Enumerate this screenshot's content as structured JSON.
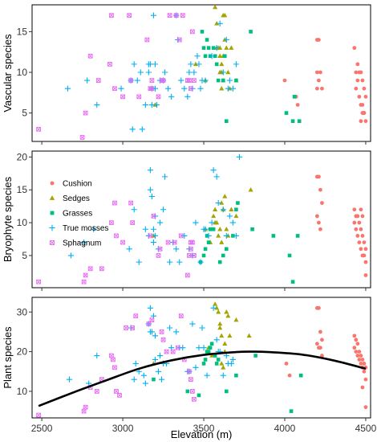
{
  "colors": {
    "Cushion": "#F8766D",
    "Sedges": "#A3A500",
    "Grasses": "#00BF7D",
    "True mosses": "#00B0F6",
    "Sphagnum": "#E76BF3",
    "curve": "#000000"
  },
  "x_axis": {
    "label": "Elevation (m)",
    "range": [
      2440,
      4530
    ],
    "ticks": [
      2500,
      3000,
      3500,
      4000,
      4500
    ]
  },
  "legend": {
    "placement": "top-left inside middle panel",
    "entries": [
      "Cushion",
      "Sedges",
      "Grasses",
      "True mosses",
      "Sphagnum"
    ]
  },
  "chart_data": [
    {
      "type": "scatter",
      "ylabel": "Vascular species",
      "ylim": [
        1.5,
        18.3
      ],
      "yticks": [
        5,
        10,
        15
      ],
      "series": [
        {
          "name": "Cushion",
          "x": [
            4000,
            4070,
            4080,
            4200,
            4210,
            4200,
            4220,
            4230,
            4200,
            4210,
            4430,
            4440,
            4450,
            4440,
            4460,
            4470,
            4480,
            4490,
            4500,
            4450,
            4460,
            4470,
            4480,
            4490,
            4500,
            4470,
            4480,
            4490
          ],
          "y": [
            9,
            7,
            6,
            14,
            14,
            10,
            10,
            8,
            8,
            9,
            13,
            10,
            9,
            8,
            7,
            6,
            5,
            5,
            4,
            11,
            10,
            10,
            9,
            8,
            7,
            4,
            6,
            5
          ]
        },
        {
          "name": "Sedges",
          "x": [
            3200,
            3450,
            3510,
            3570,
            3580,
            3580,
            3590,
            3600,
            3600,
            3610,
            3610,
            3620,
            3620,
            3630,
            3630,
            3640,
            3650,
            3660,
            3670,
            3700,
            3600,
            3610,
            3620
          ],
          "y": [
            6,
            11,
            9,
            18,
            16,
            13,
            13,
            13,
            12,
            11,
            8,
            12,
            9,
            17,
            14,
            13,
            10,
            8,
            13,
            9,
            10,
            10,
            17
          ]
        },
        {
          "name": "Grasses",
          "x": [
            3490,
            3500,
            3510,
            3520,
            3530,
            3540,
            3560,
            3570,
            3580,
            3590,
            3620,
            3630,
            3640,
            3700,
            3790,
            4010,
            4050,
            4060,
            4090
          ],
          "y": [
            15,
            13,
            12,
            14,
            13,
            12,
            13,
            12,
            11,
            9,
            9,
            12,
            4,
            9,
            15,
            5,
            4,
            7,
            4
          ]
        },
        {
          "name": "True mosses",
          "x": [
            2660,
            2780,
            2840,
            2990,
            3050,
            3060,
            3070,
            3090,
            3110,
            3120,
            3140,
            3160,
            3160,
            3170,
            3180,
            3180,
            3190,
            3200,
            3200,
            3210,
            3230,
            3250,
            3260,
            3280,
            3300,
            3330,
            3340,
            3360,
            3380,
            3400,
            3410,
            3420,
            3430,
            3440,
            3460,
            3470,
            3480,
            3490,
            3510,
            3550,
            3580,
            3600,
            3620,
            3640,
            3650,
            3660,
            3680,
            3700
          ],
          "y": [
            8,
            9,
            6,
            8,
            9,
            3,
            11,
            9,
            10,
            3,
            6,
            10,
            11,
            11,
            6,
            8,
            17,
            8,
            11,
            6,
            9,
            9,
            10,
            8,
            7,
            17,
            14,
            9,
            8,
            7,
            10,
            11,
            8,
            10,
            12,
            11,
            8,
            9,
            9,
            12,
            13,
            16,
            10,
            14,
            8,
            9,
            8,
            11
          ]
        },
        {
          "name": "Sphagnum",
          "x": [
            2480,
            2750,
            2770,
            2800,
            2850,
            2920,
            2930,
            2950,
            3000,
            3040,
            3050,
            3100,
            3150,
            3170,
            3180,
            3180,
            3220,
            3240,
            3250,
            3290,
            3330,
            3350,
            3370,
            3400,
            3410,
            3420,
            3430,
            3440
          ],
          "y": [
            3,
            2,
            5,
            12,
            9,
            11,
            17,
            8,
            7,
            17,
            9,
            7,
            14,
            8,
            8,
            9,
            7,
            9,
            9,
            17,
            17,
            14,
            17,
            9,
            9,
            8,
            15,
            9
          ]
        }
      ]
    },
    {
      "type": "scatter",
      "ylabel": "Bryophyte species",
      "ylim": [
        0.1,
        20.9
      ],
      "yticks": [
        5,
        10,
        15,
        20
      ],
      "series": [
        {
          "name": "Cushion",
          "x": [
            4200,
            4210,
            4220,
            4230,
            4200,
            4210,
            4220,
            4430,
            4440,
            4450,
            4460,
            4470,
            4480,
            4490,
            4500,
            4430,
            4440,
            4450,
            4460,
            4470,
            4480,
            4490,
            4500,
            4470,
            4480,
            4500
          ],
          "y": [
            17,
            17,
            15,
            13,
            11,
            10,
            9,
            12,
            11,
            11,
            10,
            9,
            8,
            7,
            6,
            10,
            9,
            8,
            7,
            6,
            5,
            5,
            4,
            12,
            11,
            2
          ]
        },
        {
          "name": "Sedges",
          "x": [
            3190,
            3510,
            3540,
            3560,
            3570,
            3570,
            3580,
            3590,
            3600,
            3610,
            3610,
            3620,
            3630,
            3640,
            3650,
            3670,
            3700,
            3790
          ],
          "y": [
            8,
            9,
            7,
            11,
            12,
            10,
            10,
            8,
            9,
            7,
            13,
            12,
            14,
            9,
            8,
            12,
            11,
            15
          ]
        },
        {
          "name": "Grasses",
          "x": [
            3480,
            3500,
            3510,
            3520,
            3530,
            3540,
            3560,
            3600,
            3620,
            3640,
            3680,
            3700,
            3710,
            3800,
            3930,
            4030,
            4050,
            4080
          ],
          "y": [
            4,
            5,
            6,
            8,
            7,
            9,
            9,
            4,
            5,
            6,
            8,
            12,
            13,
            9,
            8,
            5,
            1,
            8
          ]
        },
        {
          "name": "True mosses",
          "x": [
            2680,
            2760,
            2820,
            3040,
            3070,
            3100,
            3140,
            3160,
            3170,
            3170,
            3180,
            3190,
            3190,
            3200,
            3200,
            3220,
            3230,
            3250,
            3260,
            3290,
            3310,
            3330,
            3350,
            3380,
            3410,
            3430,
            3450,
            3480,
            3500,
            3510,
            3530,
            3550,
            3560,
            3580,
            3590,
            3620,
            3640,
            3660,
            3680,
            3700,
            3720
          ],
          "y": [
            5,
            7,
            9,
            6,
            12,
            4,
            9,
            8,
            15,
            18,
            14,
            9,
            7,
            11,
            8,
            6,
            10,
            12,
            17,
            4,
            7,
            6,
            4,
            8,
            6,
            5,
            10,
            4,
            9,
            9,
            8,
            10,
            18,
            17,
            13,
            12,
            8,
            11,
            10,
            8,
            20
          ]
        },
        {
          "name": "Sphagnum",
          "x": [
            2480,
            2760,
            2770,
            2800,
            2870,
            2930,
            2950,
            2960,
            3000,
            3050,
            3060,
            3170,
            3190,
            3220,
            3230,
            3280,
            3320,
            3360,
            3400,
            3410,
            3420,
            3420,
            3430,
            3440
          ],
          "y": [
            1,
            1,
            2,
            3,
            3,
            10,
            13,
            8,
            7,
            13,
            10,
            8,
            11,
            5,
            6,
            7,
            7,
            8,
            2,
            5,
            6,
            7,
            7,
            5
          ]
        }
      ]
    },
    {
      "type": "scatter",
      "ylabel": "Plant species",
      "ylim": [
        3.3,
        33.7
      ],
      "yticks": [
        10,
        20,
        30
      ],
      "series": [
        {
          "name": "Cushion",
          "x": [
            4010,
            4030,
            4200,
            4210,
            4220,
            4230,
            4200,
            4210,
            4220,
            4230,
            4430,
            4440,
            4450,
            4460,
            4470,
            4480,
            4490,
            4500,
            4430,
            4440,
            4450,
            4460,
            4470,
            4480,
            4490,
            4500,
            4480,
            4500
          ],
          "y": [
            17,
            14,
            31,
            31,
            25,
            23,
            22,
            21,
            21,
            19,
            24,
            23,
            22,
            20,
            19,
            18,
            17,
            16,
            21,
            20,
            19,
            18,
            17,
            16,
            15,
            13,
            11,
            6
          ]
        },
        {
          "name": "Sedges",
          "x": [
            3190,
            3530,
            3550,
            3570,
            3580,
            3590,
            3600,
            3600,
            3610,
            3610,
            3620,
            3630,
            3630,
            3640,
            3650,
            3660,
            3700,
            3780
          ],
          "y": [
            17,
            21,
            19,
            32,
            31,
            30,
            27,
            26,
            24,
            17,
            16,
            20,
            22,
            30,
            29,
            24,
            28,
            24
          ]
        },
        {
          "name": "Grasses",
          "x": [
            3190,
            3400,
            3470,
            3500,
            3510,
            3520,
            3530,
            3540,
            3550,
            3570,
            3580,
            3590,
            3640,
            3700,
            3820,
            4040,
            4100
          ],
          "y": [
            13,
            10,
            9,
            17,
            18,
            20,
            20,
            21,
            22,
            19,
            17,
            18,
            10,
            14,
            19,
            5,
            14
          ]
        },
        {
          "name": "True mosses",
          "x": [
            2670,
            2790,
            2840,
            3050,
            3070,
            3080,
            3100,
            3130,
            3140,
            3160,
            3170,
            3170,
            3180,
            3190,
            3200,
            3200,
            3220,
            3230,
            3240,
            3250,
            3270,
            3290,
            3300,
            3330,
            3350,
            3370,
            3400,
            3410,
            3430,
            3450,
            3470,
            3490,
            3500,
            3520,
            3560,
            3580,
            3590,
            3600,
            3620,
            3640,
            3650,
            3670,
            3680
          ],
          "y": [
            13,
            12,
            19,
            26,
            13,
            17,
            15,
            14,
            12,
            27,
            31,
            25,
            25,
            29,
            24,
            18,
            15,
            19,
            13,
            17,
            17,
            26,
            21,
            25,
            21,
            21,
            15,
            15,
            27,
            16,
            21,
            26,
            21,
            14,
            31,
            23,
            20,
            20,
            14,
            19,
            17,
            17,
            18
          ]
        },
        {
          "name": "Sphagnum",
          "x": [
            2480,
            2760,
            2770,
            2800,
            2840,
            2870,
            2930,
            2940,
            2950,
            2960,
            2980,
            3020,
            3060,
            3080,
            3160,
            3180,
            3240,
            3250,
            3270,
            3310,
            3340,
            3360,
            3380,
            3410,
            3420,
            3430,
            3440
          ],
          "y": [
            4,
            5,
            6,
            11,
            10,
            13,
            19,
            18,
            16,
            10,
            9,
            26,
            26,
            29,
            27,
            28,
            25,
            23,
            20,
            20,
            21,
            29,
            18,
            15,
            13,
            10,
            8
          ]
        }
      ],
      "curve": {
        "x": [
          2480,
          2700,
          2900,
          3100,
          3300,
          3500,
          3700,
          3800,
          3900,
          4100,
          4300,
          4500
        ],
        "y": [
          6.3,
          9.8,
          12.8,
          15.7,
          17.8,
          19.2,
          19.9,
          20,
          19.9,
          19.3,
          17.8,
          15.7
        ]
      }
    }
  ]
}
